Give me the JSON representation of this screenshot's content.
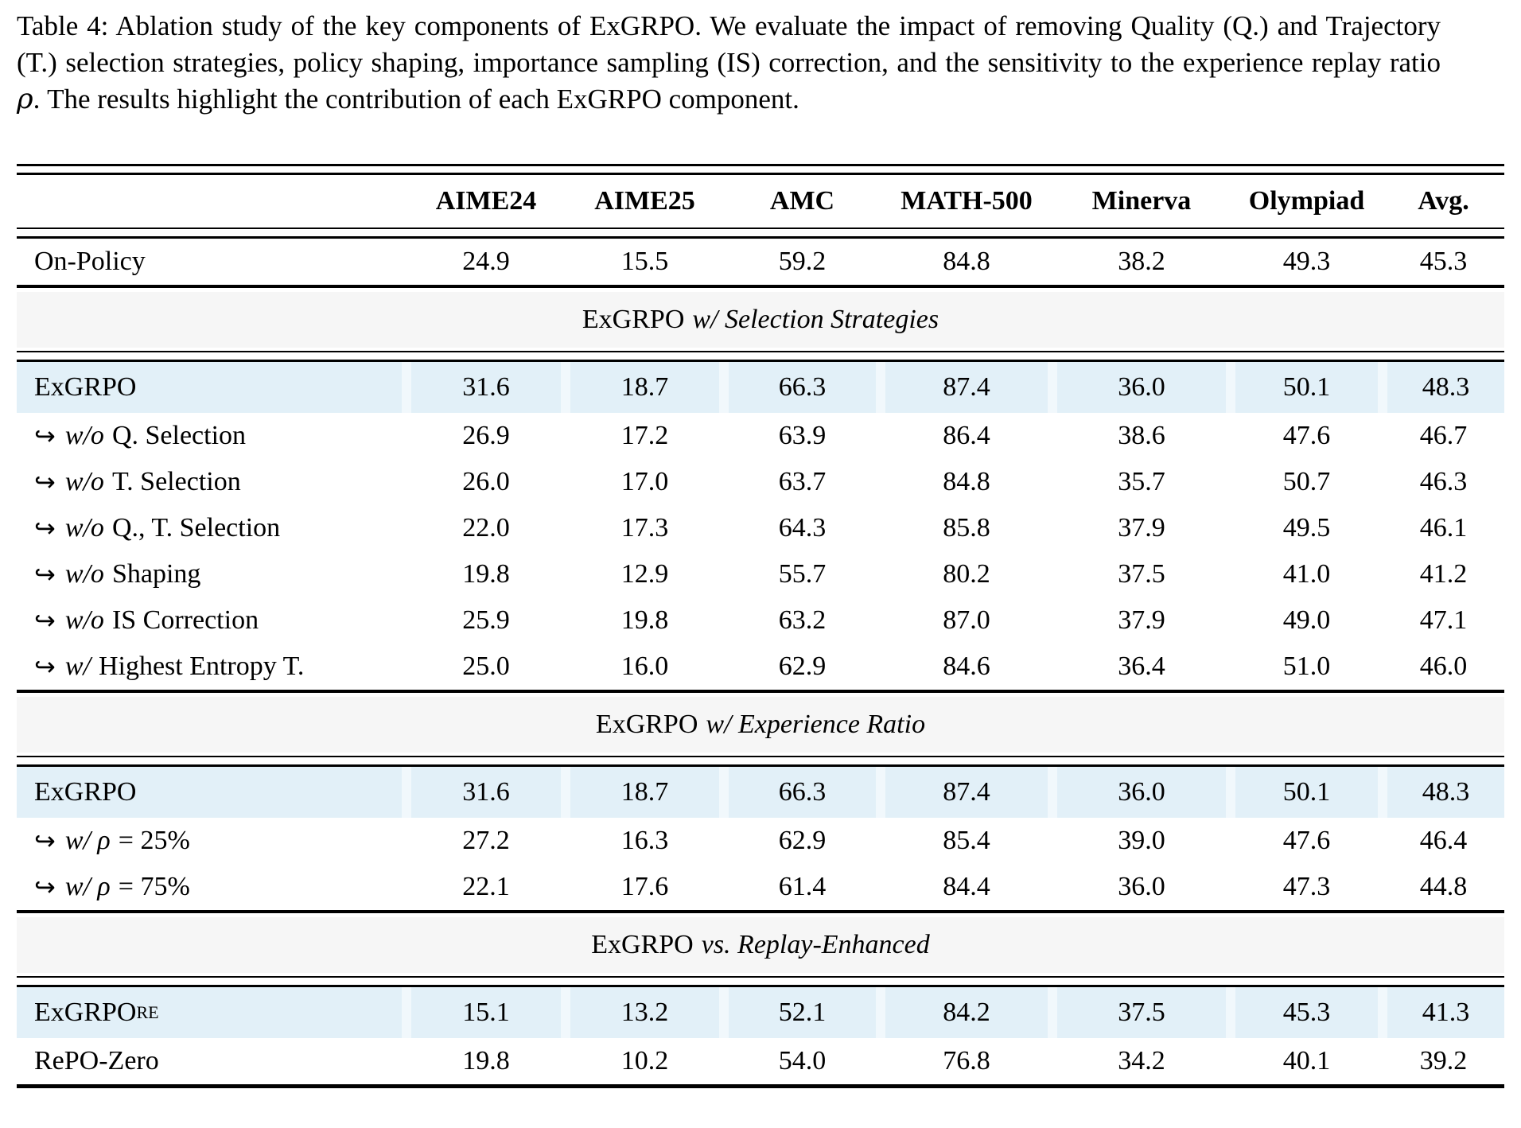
{
  "caption": {
    "before_rho": "Table 4: Ablation study of the key components of ExGRPO. We evaluate the impact of removing Quality (Q.) and Trajectory (T.) selection strategies, policy shaping, importance sampling (IS) correction, and the sensitivity to the experience replay ratio ",
    "rho": "ρ",
    "after_rho": ". The results highlight the contribution of each ExGRPO component."
  },
  "colors": {
    "highlight_row": "#e2f0f8",
    "highlight_gap": "#f1f8fc",
    "section_band": "#f6f6f6",
    "rule": "#000000"
  },
  "arrow_icon": "↪",
  "table": {
    "columns": [
      "AIME24",
      "AIME25",
      "AMC",
      "MATH-500",
      "Minerva",
      "Olympiad",
      "Avg."
    ],
    "sections": [
      {
        "kind": "rows",
        "rows": [
          {
            "arrow": false,
            "italic": "",
            "label": "On-Policy",
            "sup": "",
            "highlight": false,
            "values": [
              "24.9",
              "15.5",
              "59.2",
              "84.8",
              "38.2",
              "49.3",
              "45.3"
            ]
          }
        ]
      },
      {
        "kind": "band",
        "roman": "ExGRPO",
        "italic": "w/ Selection Strategies"
      },
      {
        "kind": "rows",
        "rows": [
          {
            "arrow": false,
            "italic": "",
            "label": "ExGRPO",
            "sup": "",
            "highlight": true,
            "values": [
              "31.6",
              "18.7",
              "66.3",
              "87.4",
              "36.0",
              "50.1",
              "48.3"
            ]
          },
          {
            "arrow": true,
            "italic": "w/o",
            "label": "Q. Selection",
            "sup": "",
            "highlight": false,
            "values": [
              "26.9",
              "17.2",
              "63.9",
              "86.4",
              "38.6",
              "47.6",
              "46.7"
            ]
          },
          {
            "arrow": true,
            "italic": "w/o",
            "label": "T. Selection",
            "sup": "",
            "highlight": false,
            "values": [
              "26.0",
              "17.0",
              "63.7",
              "84.8",
              "35.7",
              "50.7",
              "46.3"
            ]
          },
          {
            "arrow": true,
            "italic": "w/o",
            "label": "Q., T. Selection",
            "sup": "",
            "highlight": false,
            "values": [
              "22.0",
              "17.3",
              "64.3",
              "85.8",
              "37.9",
              "49.5",
              "46.1"
            ]
          },
          {
            "arrow": true,
            "italic": "w/o",
            "label": "Shaping",
            "sup": "",
            "highlight": false,
            "values": [
              "19.8",
              "12.9",
              "55.7",
              "80.2",
              "37.5",
              "41.0",
              "41.2"
            ]
          },
          {
            "arrow": true,
            "italic": "w/o",
            "label": "IS Correction",
            "sup": "",
            "highlight": false,
            "values": [
              "25.9",
              "19.8",
              "63.2",
              "87.0",
              "37.9",
              "49.0",
              "47.1"
            ]
          },
          {
            "arrow": true,
            "italic": "w/",
            "label": "Highest Entropy T.",
            "sup": "",
            "highlight": false,
            "values": [
              "25.0",
              "16.0",
              "62.9",
              "84.6",
              "36.4",
              "51.0",
              "46.0"
            ]
          }
        ]
      },
      {
        "kind": "band",
        "roman": "ExGRPO",
        "italic": "w/ Experience Ratio"
      },
      {
        "kind": "rows",
        "rows": [
          {
            "arrow": false,
            "italic": "",
            "label": "ExGRPO",
            "sup": "",
            "highlight": true,
            "values": [
              "31.6",
              "18.7",
              "66.3",
              "87.4",
              "36.0",
              "50.1",
              "48.3"
            ]
          },
          {
            "arrow": true,
            "italic": "w/ ρ",
            "label": "= 25%",
            "sup": "",
            "highlight": false,
            "values": [
              "27.2",
              "16.3",
              "62.9",
              "85.4",
              "39.0",
              "47.6",
              "46.4"
            ]
          },
          {
            "arrow": true,
            "italic": "w/ ρ",
            "label": "= 75%",
            "sup": "",
            "highlight": false,
            "values": [
              "22.1",
              "17.6",
              "61.4",
              "84.4",
              "36.0",
              "47.3",
              "44.8"
            ]
          }
        ]
      },
      {
        "kind": "band",
        "roman": "ExGRPO",
        "italic": "vs. Replay-Enhanced"
      },
      {
        "kind": "rows",
        "rows": [
          {
            "arrow": false,
            "italic": "",
            "label": "ExGRPO",
            "sup": "RE",
            "highlight": true,
            "values": [
              "15.1",
              "13.2",
              "52.1",
              "84.2",
              "37.5",
              "45.3",
              "41.3"
            ]
          },
          {
            "arrow": false,
            "italic": "",
            "label": "RePO-Zero",
            "sup": "",
            "highlight": false,
            "values": [
              "19.8",
              "10.2",
              "54.0",
              "76.8",
              "34.2",
              "40.1",
              "39.2"
            ]
          }
        ]
      }
    ]
  }
}
